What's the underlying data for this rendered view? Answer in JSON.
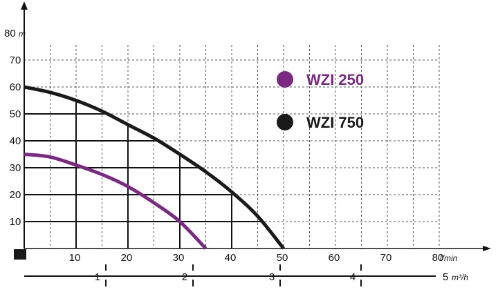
{
  "chart_data": {
    "type": "line",
    "title": "",
    "x_axis": {
      "range": [
        0,
        80
      ],
      "ticks": [
        10,
        20,
        30,
        40,
        50,
        60,
        70,
        80
      ],
      "unit": "l/min"
    },
    "y_axis": {
      "range": [
        0,
        80
      ],
      "ticks": [
        10,
        20,
        30,
        40,
        50,
        60,
        70,
        80
      ],
      "top_label": "80",
      "unit": "m"
    },
    "secondary_x_axis": {
      "ticks": [
        "1",
        "2",
        "3",
        "4",
        "5"
      ],
      "unit": "m³/h"
    },
    "grid": true,
    "legend_placement": "top-right",
    "series": [
      {
        "name": "WZI 250",
        "color": "#7b2a84",
        "points": [
          [
            0,
            35
          ],
          [
            5,
            34
          ],
          [
            10,
            31
          ],
          [
            15,
            27.5
          ],
          [
            20,
            23
          ],
          [
            25,
            17
          ],
          [
            30,
            10
          ],
          [
            35,
            0
          ]
        ]
      },
      {
        "name": "WZI 750",
        "color": "#1a1a1a",
        "points": [
          [
            0,
            60
          ],
          [
            5,
            58
          ],
          [
            10,
            55
          ],
          [
            15,
            51
          ],
          [
            20,
            46
          ],
          [
            25,
            41
          ],
          [
            30,
            35
          ],
          [
            35,
            28.5
          ],
          [
            40,
            21
          ],
          [
            45,
            12
          ],
          [
            50,
            0
          ]
        ]
      }
    ]
  }
}
